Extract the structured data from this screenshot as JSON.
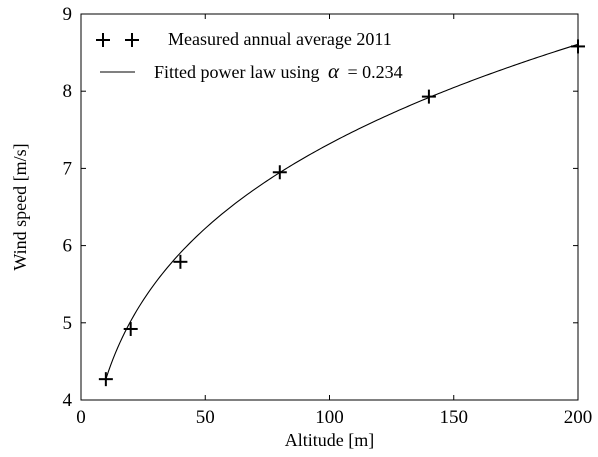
{
  "chart_data": {
    "type": "line",
    "xlabel": "Altitude [m]",
    "ylabel": "Wind speed [m/s]",
    "xlim": [
      0,
      200
    ],
    "ylim": [
      4,
      9
    ],
    "xticks": [
      0,
      50,
      100,
      150,
      200
    ],
    "yticks": [
      4,
      5,
      6,
      7,
      8,
      9
    ],
    "grid": false,
    "legend_position": "top-left",
    "series": [
      {
        "name": "Measured annual average 2011",
        "kind": "marker",
        "marker": "+",
        "x": [
          10,
          20,
          40,
          80,
          140,
          200
        ],
        "y": [
          4.27,
          4.92,
          5.79,
          6.95,
          7.93,
          8.58
        ]
      },
      {
        "name": "Fitted power law using",
        "name_math_symbol": "α",
        "name_math_value": "= 0.234",
        "kind": "line",
        "alpha": 0.234,
        "ref_x": 10,
        "ref_y": 4.27,
        "x_range": [
          10,
          200
        ]
      }
    ]
  }
}
